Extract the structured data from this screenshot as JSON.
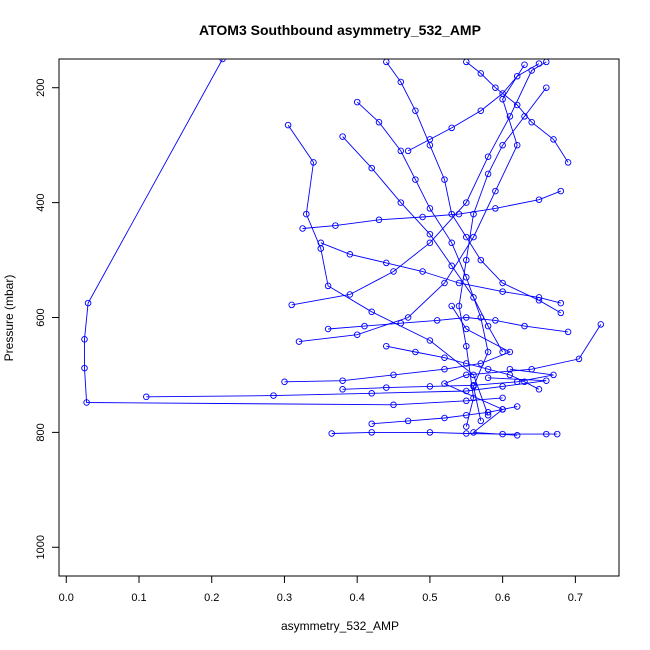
{
  "chart_data": {
    "type": "line",
    "title": "ATOM3 Southbound asymmetry_532_AMP",
    "xlabel": "asymmetry_532_AMP",
    "ylabel": "Pressure (mbar)",
    "xlim": [
      -0.01,
      0.76
    ],
    "ylim": [
      1050,
      150
    ],
    "y_reversed": true,
    "x_ticks": [
      0.0,
      0.1,
      0.2,
      0.3,
      0.4,
      0.5,
      0.6,
      0.7
    ],
    "x_tick_labels": [
      "0.0",
      "0.1",
      "0.2",
      "0.3",
      "0.4",
      "0.5",
      "0.6",
      "0.7"
    ],
    "y_ticks": [
      200,
      400,
      600,
      800,
      1000
    ],
    "y_tick_labels": [
      "200",
      "400",
      "600",
      "800",
      "1000"
    ],
    "grid": false,
    "series_color": "#0000ff",
    "marker": "open-circle",
    "series": [
      {
        "points": [
          [
            0.215,
            150
          ],
          [
            0.03,
            575
          ],
          [
            0.025,
            638
          ],
          [
            0.025,
            688
          ],
          [
            0.028,
            748
          ],
          [
            0.45,
            752
          ],
          [
            0.55,
            745
          ],
          [
            0.6,
            740
          ]
        ]
      },
      {
        "points": [
          [
            0.11,
            738
          ],
          [
            0.285,
            736
          ],
          [
            0.42,
            732
          ],
          [
            0.55,
            728
          ],
          [
            0.6,
            720
          ],
          [
            0.66,
            710
          ],
          [
            0.58,
            705
          ]
        ]
      },
      {
        "points": [
          [
            0.735,
            612
          ],
          [
            0.705,
            672
          ],
          [
            0.64,
            690
          ],
          [
            0.55,
            700
          ],
          [
            0.52,
            715
          ],
          [
            0.6,
            760
          ],
          [
            0.56,
            800
          ],
          [
            0.62,
            805
          ]
        ]
      },
      {
        "points": [
          [
            0.365,
            802
          ],
          [
            0.42,
            800
          ],
          [
            0.5,
            800
          ],
          [
            0.55,
            802
          ],
          [
            0.6,
            803
          ],
          [
            0.66,
            803
          ],
          [
            0.675,
            803
          ]
        ]
      },
      {
        "points": [
          [
            0.305,
            265
          ],
          [
            0.34,
            330
          ],
          [
            0.33,
            420
          ],
          [
            0.35,
            480
          ],
          [
            0.36,
            545
          ],
          [
            0.42,
            590
          ],
          [
            0.5,
            640
          ],
          [
            0.56,
            700
          ],
          [
            0.58,
            770
          ]
        ]
      },
      {
        "points": [
          [
            0.31,
            578
          ],
          [
            0.39,
            560
          ],
          [
            0.45,
            520
          ],
          [
            0.5,
            470
          ],
          [
            0.55,
            400
          ],
          [
            0.58,
            320
          ],
          [
            0.61,
            250
          ],
          [
            0.64,
            170
          ],
          [
            0.66,
            155
          ]
        ]
      },
      {
        "points": [
          [
            0.32,
            642
          ],
          [
            0.4,
            630
          ],
          [
            0.47,
            600
          ],
          [
            0.52,
            540
          ],
          [
            0.56,
            460
          ],
          [
            0.59,
            380
          ],
          [
            0.62,
            300
          ],
          [
            0.6,
            220
          ],
          [
            0.63,
            160
          ]
        ]
      },
      {
        "points": [
          [
            0.3,
            712
          ],
          [
            0.38,
            710
          ],
          [
            0.45,
            700
          ],
          [
            0.52,
            690
          ],
          [
            0.57,
            680
          ],
          [
            0.61,
            660
          ],
          [
            0.55,
            620
          ],
          [
            0.53,
            580
          ]
        ]
      },
      {
        "points": [
          [
            0.38,
            725
          ],
          [
            0.44,
            722
          ],
          [
            0.5,
            720
          ],
          [
            0.56,
            718
          ],
          [
            0.62,
            712
          ],
          [
            0.67,
            700
          ],
          [
            0.61,
            690
          ]
        ]
      },
      {
        "points": [
          [
            0.68,
            592
          ],
          [
            0.65,
            570
          ],
          [
            0.6,
            540
          ],
          [
            0.57,
            500
          ],
          [
            0.55,
            460
          ],
          [
            0.53,
            420
          ],
          [
            0.52,
            360
          ],
          [
            0.5,
            300
          ],
          [
            0.48,
            240
          ],
          [
            0.46,
            190
          ],
          [
            0.44,
            155
          ]
        ]
      },
      {
        "points": [
          [
            0.69,
            330
          ],
          [
            0.67,
            290
          ],
          [
            0.64,
            260
          ],
          [
            0.62,
            230
          ],
          [
            0.59,
            200
          ],
          [
            0.57,
            175
          ],
          [
            0.55,
            155
          ]
        ]
      },
      {
        "points": [
          [
            0.4,
            225
          ],
          [
            0.43,
            260
          ],
          [
            0.46,
            310
          ],
          [
            0.48,
            360
          ],
          [
            0.5,
            410
          ],
          [
            0.53,
            470
          ],
          [
            0.55,
            530
          ],
          [
            0.57,
            600
          ],
          [
            0.58,
            660
          ],
          [
            0.56,
            720
          ],
          [
            0.57,
            780
          ]
        ]
      },
      {
        "points": [
          [
            0.325,
            445
          ],
          [
            0.37,
            440
          ],
          [
            0.43,
            430
          ],
          [
            0.49,
            425
          ],
          [
            0.54,
            420
          ],
          [
            0.59,
            410
          ],
          [
            0.65,
            395
          ],
          [
            0.68,
            380
          ]
        ]
      },
      {
        "points": [
          [
            0.35,
            470
          ],
          [
            0.39,
            490
          ],
          [
            0.44,
            505
          ],
          [
            0.49,
            520
          ],
          [
            0.54,
            540
          ],
          [
            0.6,
            555
          ],
          [
            0.65,
            565
          ],
          [
            0.68,
            575
          ]
        ]
      },
      {
        "points": [
          [
            0.42,
            785
          ],
          [
            0.47,
            780
          ],
          [
            0.52,
            775
          ],
          [
            0.55,
            770
          ],
          [
            0.58,
            765
          ],
          [
            0.6,
            760
          ],
          [
            0.62,
            755
          ]
        ]
      },
      {
        "points": [
          [
            0.44,
            650
          ],
          [
            0.48,
            660
          ],
          [
            0.52,
            670
          ],
          [
            0.55,
            680
          ],
          [
            0.58,
            690
          ],
          [
            0.61,
            700
          ],
          [
            0.63,
            712
          ],
          [
            0.65,
            725
          ]
        ]
      },
      {
        "points": [
          [
            0.38,
            285
          ],
          [
            0.42,
            340
          ],
          [
            0.46,
            400
          ],
          [
            0.5,
            455
          ],
          [
            0.53,
            510
          ],
          [
            0.56,
            565
          ],
          [
            0.58,
            615
          ],
          [
            0.6,
            660
          ]
        ]
      },
      {
        "points": [
          [
            0.66,
            200
          ],
          [
            0.63,
            250
          ],
          [
            0.6,
            300
          ],
          [
            0.58,
            350
          ],
          [
            0.56,
            420
          ],
          [
            0.55,
            500
          ],
          [
            0.54,
            580
          ],
          [
            0.55,
            650
          ],
          [
            0.56,
            740
          ],
          [
            0.55,
            790
          ]
        ]
      },
      {
        "points": [
          [
            0.47,
            310
          ],
          [
            0.5,
            290
          ],
          [
            0.53,
            270
          ],
          [
            0.57,
            240
          ],
          [
            0.6,
            210
          ],
          [
            0.62,
            180
          ],
          [
            0.65,
            158
          ]
        ]
      },
      {
        "points": [
          [
            0.36,
            620
          ],
          [
            0.41,
            615
          ],
          [
            0.46,
            610
          ],
          [
            0.51,
            605
          ],
          [
            0.55,
            600
          ],
          [
            0.59,
            605
          ],
          [
            0.63,
            615
          ],
          [
            0.69,
            625
          ]
        ]
      }
    ]
  }
}
